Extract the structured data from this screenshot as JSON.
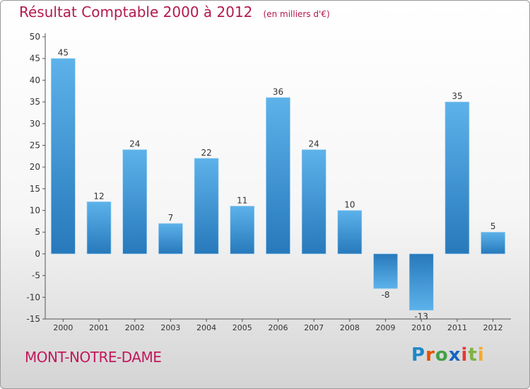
{
  "header": {
    "title": "Résultat Comptable 2000 à 2012",
    "subtitle": "(en milliers d'€)"
  },
  "town": "MONT-NOTRE-DAME",
  "logo": {
    "text": "Proxiti",
    "letters": [
      {
        "ch": "P",
        "color": "#1e88c8"
      },
      {
        "ch": "r",
        "color": "#e65100"
      },
      {
        "ch": "o",
        "color": "#43a047"
      },
      {
        "ch": "x",
        "color": "#1565c0"
      },
      {
        "ch": "i",
        "color": "#e53935"
      },
      {
        "ch": "t",
        "color": "#7cb342"
      },
      {
        "ch": "i",
        "color": "#f9a825"
      }
    ]
  },
  "colors": {
    "bar_top": "#5db2ea",
    "bar_bottom": "#2779bb",
    "title": "#b3194d"
  },
  "chart_data": {
    "type": "bar",
    "title": "Résultat Comptable 2000 à 2012",
    "subtitle": "(en milliers d'€)",
    "categories": [
      "2000",
      "2001",
      "2002",
      "2003",
      "2004",
      "2005",
      "2006",
      "2007",
      "2008",
      "2009",
      "2010",
      "2011",
      "2012"
    ],
    "values": [
      45,
      12,
      24,
      7,
      22,
      11,
      36,
      24,
      10,
      -8,
      -13,
      35,
      5
    ],
    "ylim": [
      -15,
      50
    ],
    "yticks": [
      -15,
      -10,
      -5,
      0,
      5,
      10,
      15,
      20,
      25,
      30,
      35,
      40,
      45,
      50
    ],
    "grid": false,
    "xlabel": "",
    "ylabel": ""
  }
}
